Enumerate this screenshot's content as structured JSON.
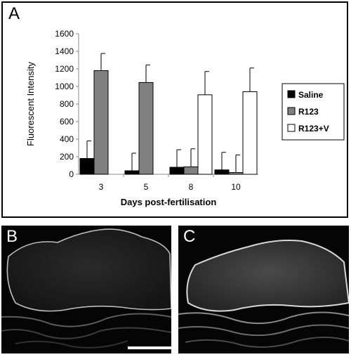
{
  "panels": {
    "a": "A",
    "b": "B",
    "c": "C"
  },
  "chart_data": {
    "type": "bar",
    "title": "",
    "xlabel": "Days post-fertilisation",
    "ylabel": "Fluorescent Intensity",
    "categories": [
      "3",
      "5",
      "8",
      "10"
    ],
    "ylim": [
      0,
      1600
    ],
    "yticks": [
      0,
      200,
      400,
      600,
      800,
      1000,
      1200,
      1400,
      1600
    ],
    "grid": false,
    "legend_position": "right",
    "series": [
      {
        "name": "Saline",
        "color": "#000000",
        "values": [
          180,
          40,
          80,
          50
        ],
        "errors": [
          200,
          200,
          200,
          200
        ]
      },
      {
        "name": "R123",
        "color": "#808080",
        "values": [
          1180,
          1045,
          85,
          20
        ],
        "errors": [
          195,
          200,
          205,
          200
        ]
      },
      {
        "name": "R123+V",
        "color": "#ffffff",
        "values": [
          null,
          null,
          905,
          940
        ],
        "errors": [
          null,
          null,
          265,
          270
        ]
      }
    ]
  },
  "micrographs": {
    "b": {
      "scale_bar": true
    },
    "c": {
      "scale_bar": false
    }
  }
}
